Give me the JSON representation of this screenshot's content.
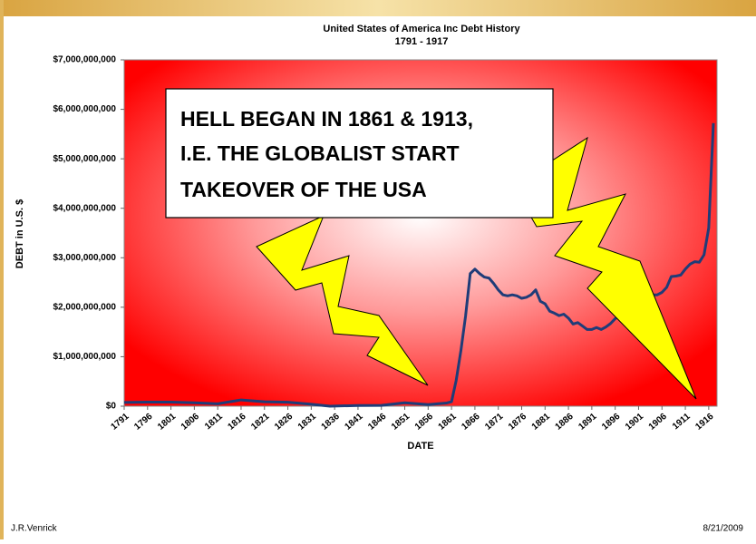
{
  "chart_data": {
    "type": "line",
    "title": "United States of America Inc Debt History",
    "subtitle": "1791 - 1917",
    "y_label": "DEBT in U.S. $",
    "x_label": "DATE",
    "color": "#1f3c78",
    "xlim": [
      1791,
      1917
    ],
    "xticks": [
      1791,
      1796,
      1801,
      1806,
      1811,
      1816,
      1821,
      1826,
      1831,
      1836,
      1841,
      1846,
      1851,
      1856,
      1861,
      1866,
      1871,
      1876,
      1881,
      1886,
      1891,
      1896,
      1901,
      1906,
      1911,
      1916
    ],
    "ylim": [
      0,
      7000000000
    ],
    "yticks": [
      {
        "value": 0,
        "label": "$0"
      },
      {
        "value": 1000000000,
        "label": "$1,000,000,000"
      },
      {
        "value": 2000000000,
        "label": "$2,000,000,000"
      },
      {
        "value": 3000000000,
        "label": "$3,000,000,000"
      },
      {
        "value": 4000000000,
        "label": "$4,000,000,000"
      },
      {
        "value": 5000000000,
        "label": "$5,000,000,000"
      },
      {
        "value": 6000000000,
        "label": "$6,000,000,000"
      },
      {
        "value": 7000000000,
        "label": "$7,000,000,000"
      }
    ],
    "x": [
      1791,
      1796,
      1801,
      1806,
      1811,
      1816,
      1821,
      1826,
      1831,
      1835,
      1841,
      1846,
      1851,
      1856,
      1860,
      1861,
      1862,
      1863,
      1864,
      1865,
      1866,
      1867,
      1868,
      1869,
      1870,
      1871,
      1872,
      1873,
      1874,
      1875,
      1876,
      1877,
      1878,
      1879,
      1880,
      1881,
      1882,
      1883,
      1884,
      1885,
      1886,
      1887,
      1888,
      1889,
      1890,
      1891,
      1892,
      1893,
      1894,
      1895,
      1896,
      1897,
      1898,
      1899,
      1900,
      1901,
      1902,
      1903,
      1904,
      1905,
      1906,
      1907,
      1908,
      1909,
      1910,
      1911,
      1912,
      1913,
      1914,
      1915,
      1916,
      1917
    ],
    "values": [
      75000000,
      83000000,
      83000000,
      69000000,
      48000000,
      127000000,
      90000000,
      81000000,
      39000000,
      0,
      14000000,
      16000000,
      68000000,
      32000000,
      65000000,
      90000000,
      524000000,
      1120000000,
      1820000000,
      2680000000,
      2770000000,
      2680000000,
      2610000000,
      2590000000,
      2480000000,
      2350000000,
      2250000000,
      2230000000,
      2250000000,
      2230000000,
      2180000000,
      2200000000,
      2250000000,
      2350000000,
      2120000000,
      2070000000,
      1920000000,
      1880000000,
      1830000000,
      1860000000,
      1780000000,
      1660000000,
      1690000000,
      1620000000,
      1550000000,
      1550000000,
      1590000000,
      1550000000,
      1600000000,
      1670000000,
      1770000000,
      1820000000,
      1900000000,
      2000000000,
      2100000000,
      2140000000,
      2160000000,
      2200000000,
      2250000000,
      2250000000,
      2300000000,
      2400000000,
      2620000000,
      2630000000,
      2650000000,
      2770000000,
      2870000000,
      2920000000,
      2910000000,
      3060000000,
      3600000000,
      5720000000
    ]
  },
  "callout": {
    "lines": [
      "HELL BEGAN IN 1861 & 1913,",
      "I.E. THE GLOBALIST START",
      "TAKEOVER OF THE USA"
    ]
  },
  "footer": {
    "author": "J.R.Venrick",
    "date": "8/21/2009"
  }
}
